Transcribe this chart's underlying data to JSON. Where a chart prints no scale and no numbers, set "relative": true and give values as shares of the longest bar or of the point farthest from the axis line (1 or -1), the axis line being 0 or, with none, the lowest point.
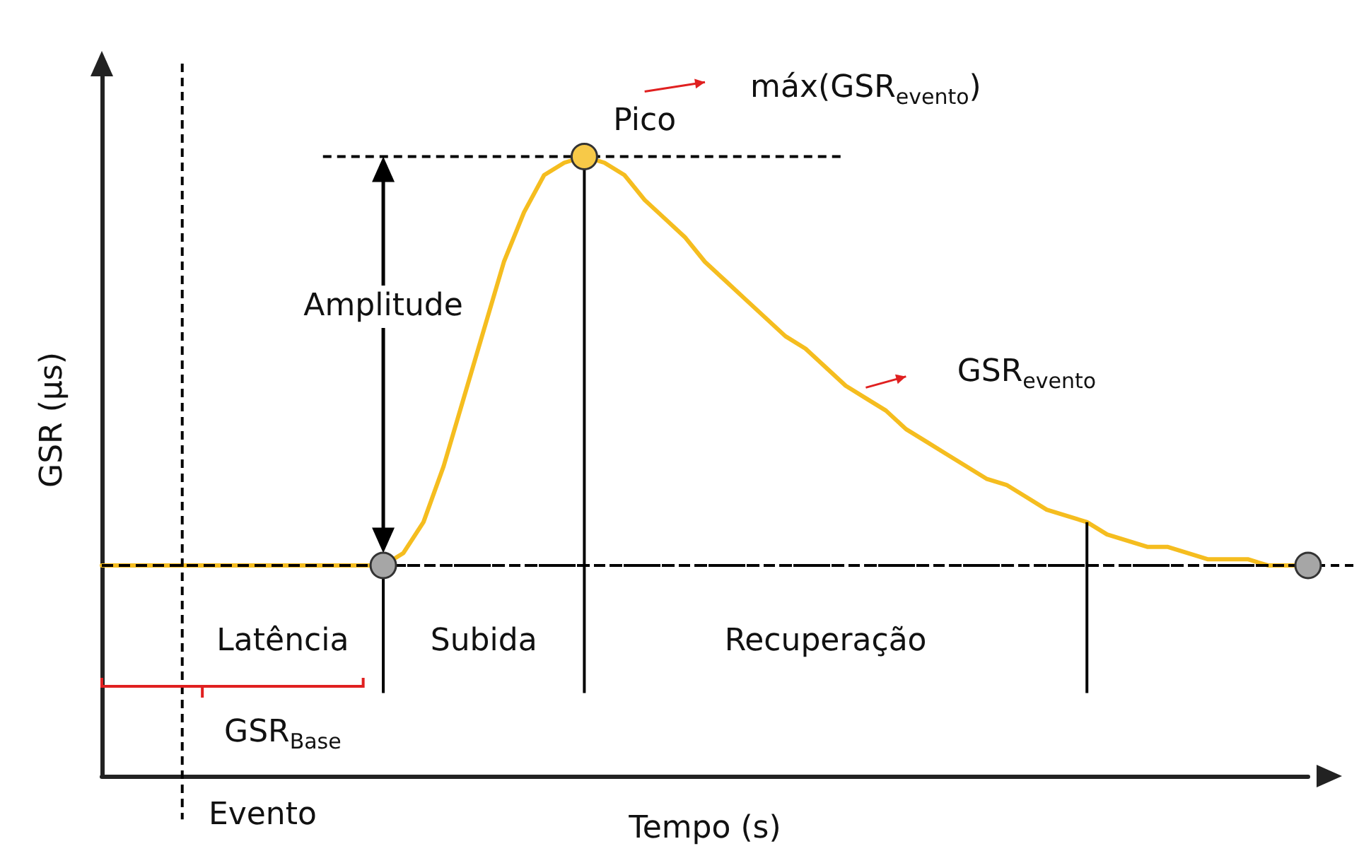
{
  "chart_data": {
    "type": "line",
    "relative": true,
    "xlabel": "Tempo (s)",
    "ylabel": "GSR (µs)",
    "categories": [
      null,
      null,
      null,
      null,
      null,
      null,
      null,
      null,
      null,
      null,
      null,
      null,
      null,
      null,
      null,
      null,
      null,
      null,
      null,
      null,
      null,
      null,
      null,
      null,
      null,
      null,
      null,
      null,
      null,
      null,
      null,
      null,
      null,
      null,
      null,
      null,
      null,
      null,
      null,
      null,
      null,
      null,
      null,
      null,
      null,
      null,
      null,
      null,
      null,
      null,
      null,
      null,
      null,
      null,
      null,
      null,
      null,
      null,
      null,
      null,
      null
    ],
    "series": [
      {
        "color": "#f5bd1f",
        "values": [
          0.34,
          0.34,
          0.34,
          0.34,
          0.34,
          0.34,
          0.34,
          0.34,
          0.34,
          0.34,
          0.34,
          0.34,
          0.34,
          0.34,
          0.34,
          0.36,
          0.41,
          0.5,
          0.61,
          0.72,
          0.83,
          0.91,
          0.97,
          0.99,
          1,
          0.99,
          0.97,
          0.93,
          0.9,
          0.87,
          0.83,
          0.8,
          0.77,
          0.74,
          0.71,
          0.69,
          0.66,
          0.63,
          0.61,
          0.59,
          0.56,
          0.54,
          0.52,
          0.5,
          0.48,
          0.47,
          0.45,
          0.43,
          0.42,
          0.41,
          0.39,
          0.38,
          0.37,
          0.37,
          0.36,
          0.35,
          0.35,
          0.35,
          0.34,
          0.34,
          0.34
        ]
      }
    ],
    "ref_lines": [
      {
        "axis": "y",
        "value": 0.34,
        "color": "#000000",
        "line_style": "dashed"
      }
    ],
    "annotations": [
      "Pico",
      "máx(GSR$_{evento}$)",
      "Amplitude",
      "GSR$_{evento}$",
      "Latência",
      "Subida",
      "Recuperação",
      "GSR$_{Base}$",
      "Evento"
    ]
  }
}
